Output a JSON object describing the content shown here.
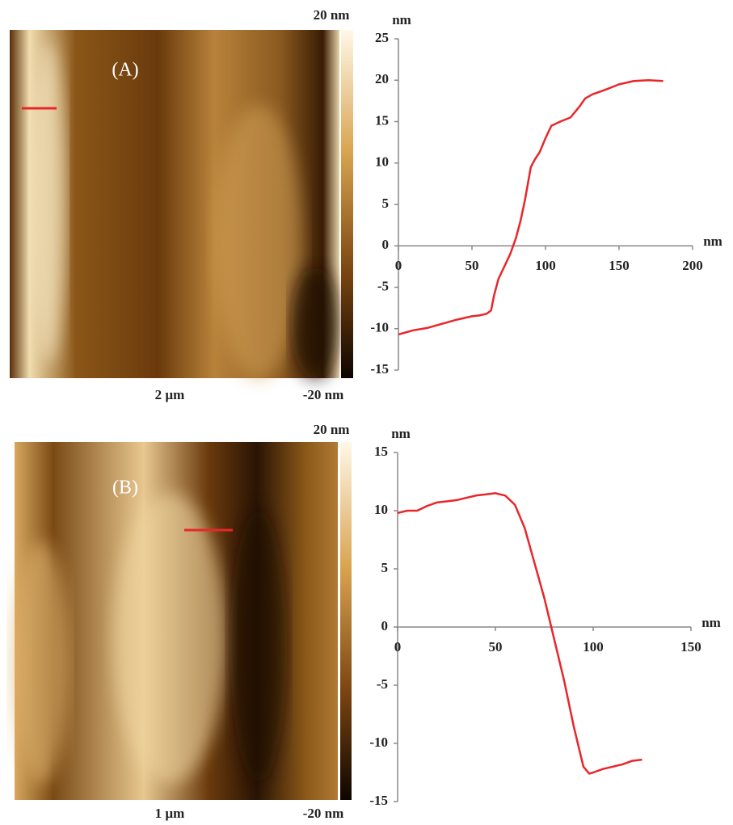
{
  "chart_data": [
    {
      "type": "line",
      "panel_label": "(A)",
      "image": {
        "scale_bar": "2 µm",
        "colorbar_max": "20 nm",
        "colorbar_min": "-20 nm"
      },
      "xlabel": "nm",
      "ylabel": "nm",
      "x": [
        0,
        10,
        20,
        30,
        40,
        50,
        55,
        60,
        63,
        65,
        68,
        72,
        76,
        80,
        83,
        86,
        90,
        93,
        96,
        100,
        104,
        110,
        117,
        123,
        127,
        132,
        140,
        150,
        160,
        170,
        180
      ],
      "series": [
        {
          "color": "#e8262a",
          "values": [
            -10.7,
            -10.2,
            -9.9,
            -9.4,
            -8.9,
            -8.5,
            -8.4,
            -8.2,
            -7.8,
            -6,
            -4,
            -2.5,
            -1,
            1,
            3,
            5.5,
            9.5,
            10.5,
            11.3,
            13,
            14.5,
            15,
            15.5,
            16.8,
            17.8,
            18.3,
            18.8,
            19.5,
            19.9,
            20,
            19.9
          ]
        }
      ],
      "xlim": [
        0,
        200
      ],
      "xticks": [
        0,
        50,
        100,
        150,
        200
      ],
      "ylim": [
        -15,
        25
      ],
      "yticks": [
        -15,
        -10,
        -5,
        0,
        5,
        10,
        15,
        20,
        25
      ]
    },
    {
      "type": "line",
      "panel_label": "(B)",
      "image": {
        "scale_bar": "1 µm",
        "colorbar_max": "20 nm",
        "colorbar_min": "-20 nm"
      },
      "xlabel": "nm",
      "ylabel": "nm",
      "x": [
        0,
        5,
        10,
        15,
        20,
        25,
        30,
        35,
        40,
        45,
        50,
        55,
        60,
        65,
        70,
        75,
        80,
        85,
        90,
        95,
        98,
        100,
        105,
        110,
        115,
        120,
        125
      ],
      "series": [
        {
          "color": "#e8262a",
          "values": [
            9.8,
            10,
            10,
            10.4,
            10.7,
            10.8,
            10.9,
            11.1,
            11.3,
            11.4,
            11.5,
            11.3,
            10.5,
            8.5,
            5.5,
            2.5,
            -1,
            -4.5,
            -8.5,
            -12,
            -12.6,
            -12.5,
            -12.2,
            -12,
            -11.8,
            -11.5,
            -11.4
          ]
        }
      ],
      "xlim": [
        0,
        150
      ],
      "xticks": [
        0,
        50,
        100,
        150
      ],
      "ylim": [
        -15,
        15
      ],
      "yticks": [
        -15,
        -10,
        -5,
        0,
        5,
        10,
        15
      ]
    }
  ]
}
